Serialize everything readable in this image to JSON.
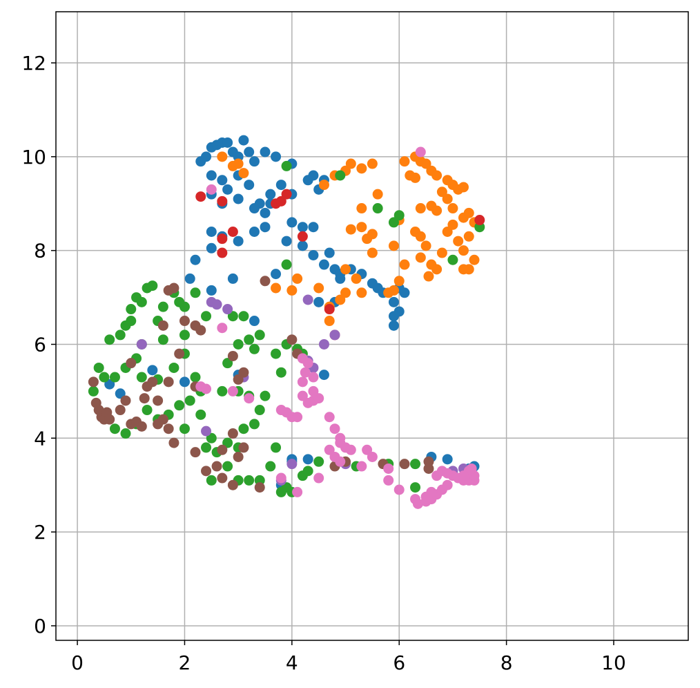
{
  "chart_data": {
    "type": "scatter",
    "grid": true,
    "xlim": [
      -0.4,
      11.39
    ],
    "ylim": [
      -0.31,
      13.09
    ],
    "xticks": [
      0,
      2,
      4,
      6,
      8,
      10
    ],
    "yticks": [
      0,
      2,
      4,
      6,
      8,
      10,
      12
    ],
    "series": [
      {
        "color": "#1f77b4",
        "x": [
          2.3,
          2.4,
          2.5,
          2.6,
          2.7,
          2.8,
          2.9,
          3.0,
          3.1,
          3.2,
          3.3,
          3.5,
          3.7,
          2.5,
          2.7,
          2.8,
          3.0,
          3.2,
          3.4,
          3.6,
          2.5,
          2.7,
          3.0,
          3.3,
          3.5,
          3.6,
          3.8,
          4.0,
          4.0,
          2.5,
          2.5,
          2.7,
          3.0,
          3.3,
          3.5,
          3.9,
          4.0,
          4.2,
          4.4,
          4.2,
          4.4,
          4.7,
          4.3,
          4.4,
          4.6,
          4.5,
          4.6,
          4.8,
          4.9,
          4.9,
          5.1,
          5.3,
          5.5,
          5.6,
          5.7,
          5.9,
          5.9,
          6.0,
          5.9,
          6.0,
          6.1,
          4.5,
          4.8,
          3.7,
          2.2,
          2.1,
          2.9,
          2.5,
          3.3,
          1.4,
          0.8,
          2.0,
          0.6,
          3.8,
          4.0,
          4.3,
          4.0,
          6.6,
          6.9,
          7.3,
          7.4,
          4.6,
          3.0
        ],
        "values": [
          9.9,
          10.0,
          10.2,
          10.25,
          10.3,
          10.3,
          10.1,
          10.0,
          10.35,
          10.1,
          9.9,
          10.1,
          10.0,
          9.6,
          9.5,
          9.3,
          9.6,
          9.4,
          9.0,
          9.2,
          9.2,
          9.0,
          9.1,
          8.9,
          8.8,
          9.0,
          9.4,
          9.85,
          9.2,
          8.4,
          8.05,
          8.3,
          8.2,
          8.4,
          8.5,
          8.2,
          8.6,
          8.5,
          8.5,
          8.1,
          7.9,
          7.95,
          9.5,
          9.6,
          9.5,
          9.3,
          7.7,
          7.6,
          7.5,
          7.4,
          7.6,
          7.5,
          7.3,
          7.2,
          7.1,
          6.9,
          6.6,
          6.7,
          6.4,
          7.2,
          7.1,
          6.9,
          6.9,
          7.5,
          7.8,
          7.4,
          7.4,
          7.15,
          6.5,
          5.45,
          4.95,
          5.2,
          5.15,
          3.0,
          3.55,
          3.55,
          3.5,
          3.6,
          3.55,
          3.35,
          3.4,
          5.35,
          5.35
        ]
      },
      {
        "color": "#ff7f0e",
        "x": [
          2.7,
          2.9,
          3.0,
          3.1,
          4.6,
          4.8,
          5.0,
          5.1,
          5.3,
          5.5,
          5.6,
          5.3,
          5.1,
          5.3,
          5.4,
          5.5,
          5.5,
          5.9,
          6.0,
          6.1,
          6.2,
          6.3,
          6.3,
          6.4,
          6.5,
          6.6,
          6.7,
          6.8,
          6.9,
          7.0,
          7.1,
          7.2,
          6.4,
          6.6,
          6.7,
          6.9,
          7.0,
          7.2,
          7.3,
          7.4,
          7.3,
          7.2,
          7.1,
          6.9,
          7.0,
          6.3,
          6.4,
          6.5,
          6.6,
          6.55,
          6.7,
          6.8,
          6.4,
          6.1,
          5.9,
          6.0,
          5.8,
          7.3,
          7.4,
          7.2,
          5.0,
          5.2,
          4.9,
          4.7,
          4.7,
          4.5,
          4.1,
          4.0,
          3.7,
          5.3,
          5.0
        ],
        "values": [
          10.0,
          9.8,
          9.85,
          9.65,
          9.4,
          9.6,
          9.7,
          9.85,
          9.75,
          9.85,
          9.2,
          8.9,
          8.45,
          8.5,
          8.25,
          8.35,
          7.95,
          8.1,
          8.65,
          9.9,
          9.6,
          9.55,
          10.0,
          9.9,
          9.85,
          9.7,
          9.6,
          9.25,
          9.5,
          9.4,
          9.3,
          9.35,
          8.9,
          8.95,
          8.85,
          9.1,
          8.9,
          8.7,
          8.8,
          8.6,
          8.3,
          8.0,
          8.2,
          8.4,
          8.55,
          8.4,
          8.3,
          8.1,
          7.7,
          7.45,
          7.6,
          7.95,
          7.85,
          7.7,
          7.15,
          7.35,
          7.1,
          7.6,
          7.8,
          7.6,
          7.1,
          7.4,
          6.95,
          6.8,
          6.5,
          7.2,
          7.4,
          7.15,
          7.2,
          7.1,
          7.6
        ]
      },
      {
        "color": "#2ca02c",
        "x": [
          0.3,
          0.4,
          0.5,
          0.6,
          0.7,
          0.9,
          0.8,
          1.0,
          1.0,
          1.1,
          1.2,
          1.3,
          1.4,
          1.5,
          1.6,
          1.8,
          1.9,
          2.0,
          2.2,
          2.4,
          2.0,
          1.6,
          1.2,
          1.1,
          0.9,
          1.2,
          1.5,
          1.8,
          2.0,
          2.2,
          2.3,
          2.1,
          1.9,
          1.7,
          1.5,
          1.3,
          0.7,
          0.9,
          1.1,
          2.0,
          2.3,
          2.5,
          2.4,
          2.6,
          2.8,
          3.0,
          3.1,
          3.3,
          3.4,
          3.5,
          3.2,
          3.0,
          2.7,
          2.8,
          3.0,
          3.2,
          3.4,
          3.3,
          2.9,
          3.1,
          2.5,
          2.8,
          3.0,
          3.2,
          3.4,
          3.6,
          3.8,
          3.9,
          4.0,
          4.2,
          4.3,
          3.7,
          3.7,
          3.8,
          3.9,
          4.1,
          4.2,
          3.9,
          3.9,
          4.9,
          5.6,
          5.9,
          6.0,
          7.0,
          7.5,
          5.2,
          5.8,
          6.3,
          6.3,
          4.5
        ],
        "values": [
          5.0,
          5.5,
          5.3,
          6.1,
          5.3,
          6.4,
          6.2,
          6.5,
          6.75,
          7.0,
          6.9,
          7.2,
          7.25,
          6.5,
          6.8,
          7.1,
          6.9,
          6.8,
          7.1,
          6.6,
          6.2,
          6.1,
          6.0,
          5.7,
          5.5,
          5.3,
          5.25,
          5.5,
          5.8,
          5.3,
          5.0,
          4.8,
          4.7,
          4.5,
          4.4,
          4.6,
          4.2,
          4.1,
          4.3,
          4.2,
          4.5,
          4.0,
          3.8,
          3.7,
          3.9,
          3.8,
          4.2,
          4.3,
          4.6,
          4.9,
          4.9,
          5.0,
          5.0,
          5.6,
          6.0,
          6.1,
          6.2,
          5.9,
          6.6,
          6.6,
          3.1,
          3.4,
          3.1,
          3.1,
          3.1,
          3.4,
          2.85,
          2.95,
          2.85,
          3.2,
          3.3,
          3.8,
          5.8,
          5.4,
          6.0,
          5.9,
          5.8,
          7.7,
          9.8,
          9.6,
          8.9,
          8.6,
          8.75,
          7.8,
          8.5,
          3.4,
          3.45,
          3.45,
          2.95,
          3.5
        ]
      },
      {
        "color": "#d62728",
        "x": [
          2.3,
          2.7,
          3.7,
          3.8,
          3.9,
          2.9,
          2.7,
          2.7,
          4.2,
          4.7,
          4.8,
          7.5
        ],
        "values": [
          9.15,
          9.05,
          9.0,
          9.05,
          9.2,
          8.4,
          8.25,
          7.95,
          8.3,
          6.75,
          6.2,
          8.65
        ]
      },
      {
        "color": "#9467bd",
        "x": [
          2.5,
          2.6,
          2.8,
          4.3,
          4.6,
          4.8,
          2.4,
          4.3,
          4.4,
          3.8,
          4.0,
          5.0,
          7.0,
          7.2,
          3.1,
          1.2
        ],
        "values": [
          6.9,
          6.85,
          6.75,
          6.95,
          6.0,
          6.2,
          4.15,
          5.65,
          5.5,
          3.1,
          3.45,
          3.45,
          3.3,
          3.35,
          5.3,
          6.0
        ]
      },
      {
        "color": "#8c564b",
        "x": [
          0.3,
          0.35,
          0.4,
          0.45,
          0.5,
          0.55,
          0.6,
          0.8,
          0.9,
          1.0,
          1.0,
          1.1,
          1.2,
          1.25,
          1.3,
          1.4,
          1.5,
          1.5,
          1.6,
          1.7,
          1.8,
          1.6,
          1.7,
          1.8,
          2.0,
          2.3,
          2.2,
          1.9,
          1.7,
          2.2,
          2.9,
          3.0,
          3.1,
          2.2,
          2.4,
          2.6,
          2.7,
          2.7,
          2.9,
          3.0,
          2.9,
          3.1,
          3.4,
          3.5,
          4.1,
          4.0,
          4.8,
          5.0,
          5.7,
          6.1,
          6.55,
          6.55
        ],
        "values": [
          5.2,
          4.75,
          4.6,
          4.45,
          4.4,
          4.55,
          4.4,
          4.6,
          4.8,
          5.6,
          4.3,
          4.35,
          4.25,
          4.85,
          5.1,
          5.2,
          4.8,
          4.3,
          4.4,
          4.2,
          3.9,
          6.4,
          7.15,
          7.2,
          6.5,
          6.3,
          6.4,
          5.8,
          5.2,
          5.1,
          5.75,
          5.25,
          5.4,
          3.7,
          3.3,
          3.4,
          3.15,
          3.75,
          4.1,
          3.6,
          3.0,
          3.8,
          2.95,
          7.35,
          5.8,
          6.1,
          3.4,
          3.5,
          3.45,
          3.45,
          3.5,
          3.35
        ]
      },
      {
        "color": "#e377c2",
        "x": [
          6.4,
          2.5,
          2.7,
          2.3,
          2.4,
          2.9,
          3.2,
          3.8,
          3.9,
          4.0,
          4.1,
          4.2,
          4.3,
          4.4,
          4.5,
          4.2,
          4.25,
          4.3,
          4.2,
          4.4,
          4.4,
          4.7,
          4.8,
          4.9,
          5.0,
          4.8,
          4.9,
          5.1,
          5.3,
          5.4,
          5.5,
          4.7,
          4.5,
          3.8,
          4.1,
          5.8,
          5.8,
          6.0,
          6.3,
          6.35,
          6.5,
          6.6,
          6.7,
          6.8,
          6.6,
          6.5,
          6.9,
          7.0,
          7.1,
          7.2,
          7.3,
          7.4,
          7.4,
          7.3,
          7.2,
          6.7,
          6.8,
          6.9,
          7.35,
          4.9
        ],
        "values": [
          10.1,
          9.3,
          6.35,
          5.1,
          5.05,
          5.0,
          4.85,
          4.6,
          4.55,
          4.45,
          4.45,
          4.9,
          4.75,
          4.8,
          4.85,
          5.2,
          5.4,
          5.6,
          5.7,
          5.3,
          5.0,
          4.45,
          4.2,
          4.0,
          3.8,
          3.6,
          3.5,
          3.75,
          3.4,
          3.75,
          3.6,
          3.75,
          3.15,
          3.15,
          2.85,
          3.35,
          3.1,
          2.9,
          2.7,
          2.6,
          2.65,
          2.7,
          2.8,
          2.9,
          2.85,
          2.75,
          3.0,
          3.2,
          3.15,
          3.1,
          3.1,
          3.1,
          3.2,
          3.3,
          3.2,
          3.2,
          3.3,
          3.25,
          3.35,
          3.9
        ]
      }
    ]
  }
}
